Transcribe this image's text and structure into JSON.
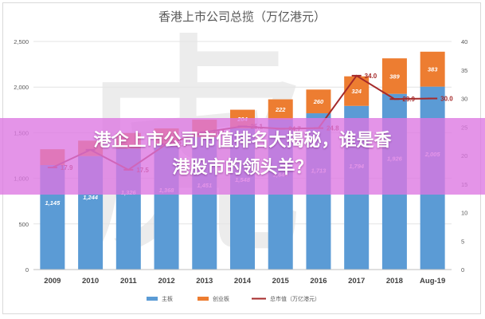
{
  "chart_data": {
    "type": "bar",
    "title": "香港上市公司总揽（万亿港元）",
    "categories": [
      "2009",
      "2010",
      "2011",
      "2012",
      "2013",
      "2014",
      "2015",
      "2016",
      "2017",
      "2018",
      "Aug-19"
    ],
    "series": [
      {
        "name": "主板",
        "kind": "bar",
        "axis": "left",
        "color": "#5b9bd5",
        "values": [
          1145,
          1244,
          1326,
          1368,
          1451,
          1548,
          1644,
          1713,
          1794,
          1926,
          2005
        ],
        "labels": [
          "1,145",
          "1,244",
          "1,326",
          "1,368",
          "1,451",
          "1,548",
          "1,644",
          "1,713",
          "1,794",
          "1,926",
          "2,005"
        ]
      },
      {
        "name": "创业板",
        "kind": "bar-stacked",
        "axis": "left",
        "color": "#ed7d31",
        "values": [
          174,
          169,
          170,
          179,
          192,
          204,
          222,
          260,
          324,
          389,
          383
        ],
        "labels": [
          "",
          "",
          "",
          "",
          "",
          "204",
          "222",
          "260",
          "324",
          "389",
          "383"
        ]
      },
      {
        "name": "总市值（万亿港元）",
        "kind": "line",
        "axis": "right",
        "color": "#a52a2a",
        "values": [
          17.9,
          21.0,
          17.5,
          22.0,
          24.1,
          25.1,
          24.7,
          24.8,
          34.0,
          29.9,
          30.0
        ],
        "labels": [
          "17.9",
          "",
          "17.5",
          "22.0",
          "24.1",
          "25.1",
          "24.7",
          "24.8",
          "34.0",
          "29.9",
          "30.0"
        ]
      }
    ],
    "y_left": {
      "min": 0,
      "max": 2500,
      "ticks": [
        0,
        500,
        1000,
        1500,
        2000,
        2500
      ],
      "tick_labels": [
        "0",
        "500",
        "1,000",
        "1,500",
        "2,000",
        "2,500"
      ]
    },
    "y_right": {
      "min": 0,
      "max": 40,
      "ticks": [
        0,
        5,
        10,
        15,
        20,
        25,
        30,
        35,
        40
      ],
      "tick_labels": [
        "0",
        "5",
        "10",
        "15",
        "20",
        "25",
        "30",
        "35",
        "40"
      ]
    },
    "grid": true,
    "legend_position": "bottom"
  },
  "watermark": "虎",
  "banner": {
    "line1": "港企上市公司市值排名大揭秘，谁是香",
    "line2": "港股市的领头羊？"
  },
  "colors": {
    "main_board": "#5b9bd5",
    "gem": "#ed7d31",
    "total": "#a52a2a",
    "banner": "#dd76e2"
  }
}
